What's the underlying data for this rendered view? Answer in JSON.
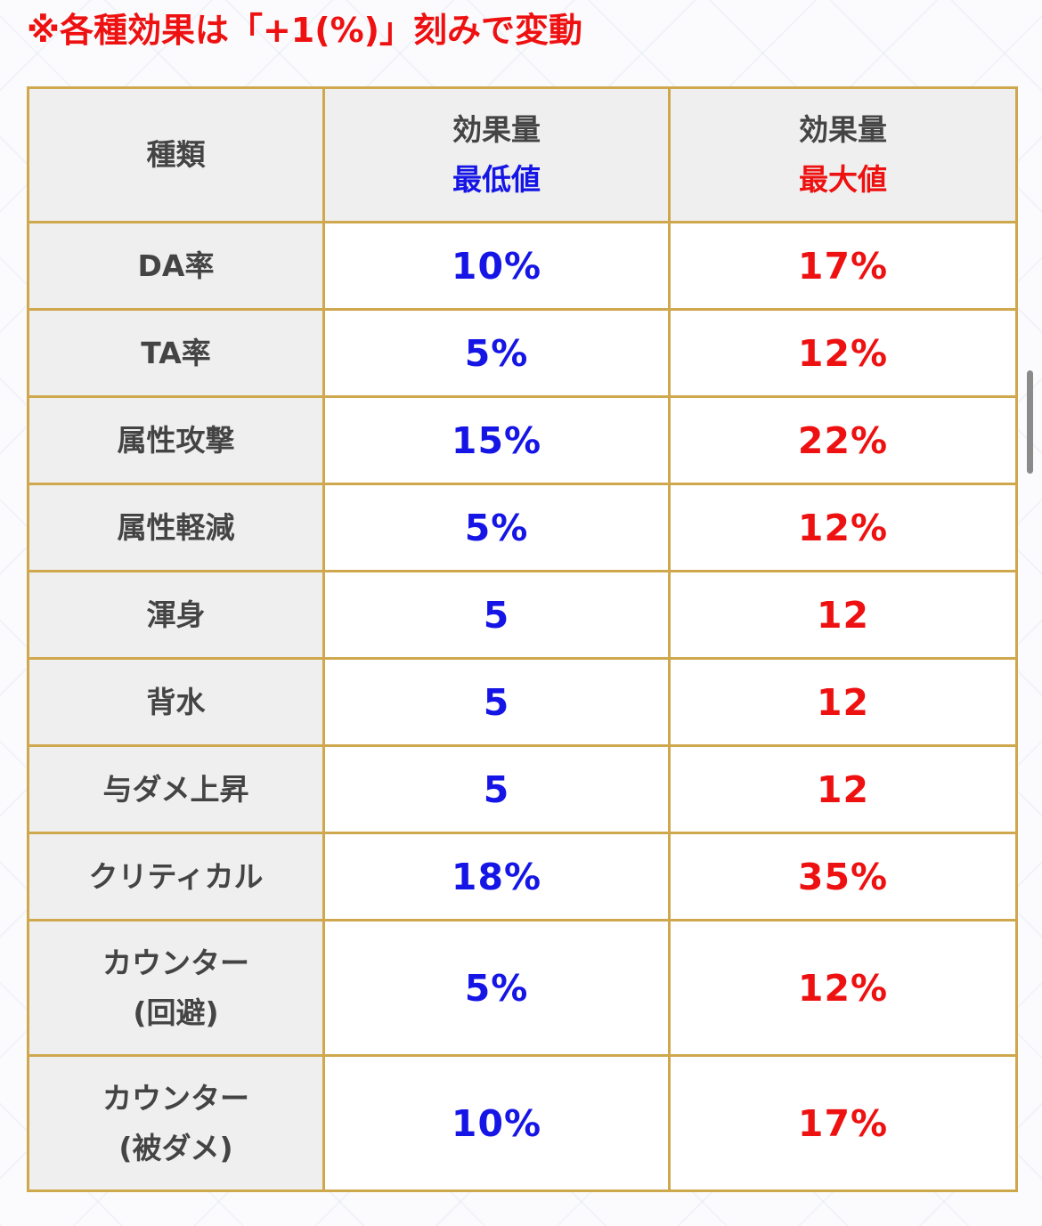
{
  "note": "※各種効果は「+1(%)」刻みで変動",
  "table": {
    "header": {
      "type": "種類",
      "col_min": {
        "line1": "効果量",
        "line2": "最低値"
      },
      "col_max": {
        "line1": "効果量",
        "line2": "最大値"
      }
    },
    "rows": [
      {
        "type_lines": [
          "DA率"
        ],
        "min": "10%",
        "max": "17%"
      },
      {
        "type_lines": [
          "TA率"
        ],
        "min": "5%",
        "max": "12%"
      },
      {
        "type_lines": [
          "属性攻撃"
        ],
        "min": "15%",
        "max": "22%"
      },
      {
        "type_lines": [
          "属性軽減"
        ],
        "min": "5%",
        "max": "12%"
      },
      {
        "type_lines": [
          "渾身"
        ],
        "min": "5",
        "max": "12"
      },
      {
        "type_lines": [
          "背水"
        ],
        "min": "5",
        "max": "12"
      },
      {
        "type_lines": [
          "与ダメ上昇"
        ],
        "min": "5",
        "max": "12"
      },
      {
        "type_lines": [
          "クリティカル"
        ],
        "min": "18%",
        "max": "35%"
      },
      {
        "type_lines": [
          "カウンター",
          "(回避)"
        ],
        "min": "5%",
        "max": "12%"
      },
      {
        "type_lines": [
          "カウンター",
          "(被ダメ)"
        ],
        "min": "10%",
        "max": "17%"
      }
    ]
  },
  "colors": {
    "min_value": "#1515e6",
    "max_value": "#ee1111",
    "note": "#ee1111",
    "border": "#cfa84e",
    "header_bg": "#efefef"
  }
}
